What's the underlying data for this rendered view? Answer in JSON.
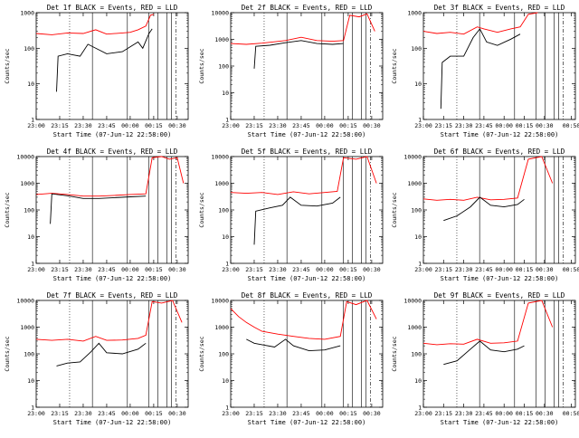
{
  "chart_data": [
    {
      "type": "line",
      "title": "Det 1f BLACK = Events, RED = LLD",
      "xlabel": "Start Time (07-Jun-12 22:58:00)",
      "ylabel": "Counts/sec",
      "yscale": "log",
      "ylim": [
        1,
        1000
      ],
      "xlim": [
        "23:00",
        "00:37"
      ],
      "xticks": [
        "23:00",
        "23:15",
        "23:30",
        "23:45",
        "00:00",
        "00:15",
        "00:30"
      ],
      "yticks": [
        "1",
        "10",
        "100",
        "1000"
      ],
      "red": [
        [
          "23:00",
          260
        ],
        [
          "23:10",
          240
        ],
        [
          "23:20",
          270
        ],
        [
          "23:30",
          260
        ],
        [
          "23:38",
          330
        ],
        [
          "23:45",
          250
        ],
        [
          "23:55",
          270
        ],
        [
          "00:00",
          280
        ],
        [
          "00:05",
          330
        ],
        [
          "00:10",
          420
        ],
        [
          "00:13",
          850
        ],
        [
          "00:15",
          900
        ]
      ],
      "black": [
        [
          "23:13",
          6
        ],
        [
          "23:14",
          60
        ],
        [
          "23:20",
          70
        ],
        [
          "23:28",
          60
        ],
        [
          "23:33",
          130
        ],
        [
          "23:45",
          70
        ],
        [
          "23:55",
          80
        ],
        [
          "00:00",
          110
        ],
        [
          "00:05",
          150
        ],
        [
          "00:08",
          100
        ],
        [
          "00:12",
          260
        ],
        [
          "00:14",
          350
        ]
      ]
    },
    {
      "type": "line",
      "title": "Det 2f BLACK = Events, RED = LLD",
      "xlabel": "Start Time (07-Jun-12 22:58:00)",
      "ylabel": "Counts/sec",
      "yscale": "log",
      "ylim": [
        1,
        10000
      ],
      "xlim": [
        "23:00",
        "00:37"
      ],
      "xticks": [
        "23:00",
        "23:15",
        "23:30",
        "23:45",
        "00:00",
        "00:15",
        "00:30"
      ],
      "yticks": [
        "1",
        "10",
        "100",
        "1000",
        "10000"
      ],
      "red": [
        [
          "23:00",
          700
        ],
        [
          "23:10",
          650
        ],
        [
          "23:20",
          720
        ],
        [
          "23:35",
          900
        ],
        [
          "23:45",
          1200
        ],
        [
          "23:55",
          900
        ],
        [
          "00:05",
          850
        ],
        [
          "00:12",
          900
        ],
        [
          "00:16",
          8000
        ],
        [
          "00:22",
          7000
        ],
        [
          "00:27",
          9000
        ],
        [
          "00:32",
          2000
        ]
      ],
      "black": [
        [
          "23:15",
          80
        ],
        [
          "23:16",
          550
        ],
        [
          "23:25",
          600
        ],
        [
          "23:35",
          750
        ],
        [
          "23:45",
          900
        ],
        [
          "23:55",
          700
        ],
        [
          "00:05",
          650
        ],
        [
          "00:12",
          700
        ]
      ]
    },
    {
      "type": "line",
      "title": "Det 3f BLACK = Events, RED = LLD",
      "xlabel": "Start Time (07-Jun-12 22:58:00)",
      "ylabel": "Counts/sec",
      "yscale": "log",
      "ylim": [
        1,
        1000
      ],
      "xlim": [
        "23:00",
        "00:53"
      ],
      "xticks": [
        "23:00",
        "23:15",
        "23:30",
        "23:45",
        "00:00",
        "00:15",
        "00:30",
        "00:50"
      ],
      "yticks": [
        "1",
        "10",
        "100",
        "1000"
      ],
      "red": [
        [
          "23:00",
          300
        ],
        [
          "23:10",
          260
        ],
        [
          "23:20",
          280
        ],
        [
          "23:30",
          250
        ],
        [
          "23:40",
          400
        ],
        [
          "23:45",
          350
        ],
        [
          "23:55",
          280
        ],
        [
          "00:05",
          350
        ],
        [
          "00:12",
          400
        ],
        [
          "00:18",
          900
        ],
        [
          "00:25",
          1000
        ]
      ],
      "black": [
        [
          "23:13",
          2
        ],
        [
          "23:14",
          40
        ],
        [
          "23:20",
          60
        ],
        [
          "23:30",
          60
        ],
        [
          "23:37",
          200
        ],
        [
          "23:42",
          350
        ],
        [
          "23:47",
          150
        ],
        [
          "23:55",
          120
        ],
        [
          "00:05",
          180
        ],
        [
          "00:12",
          250
        ]
      ]
    },
    {
      "type": "line",
      "title": "Det 4f BLACK = Events, RED = LLD",
      "xlabel": "Start Time (07-Jun-12 22:58:00)",
      "ylabel": "Counts/sec",
      "yscale": "log",
      "ylim": [
        1,
        10000
      ],
      "xlim": [
        "23:00",
        "00:37"
      ],
      "xticks": [
        "23:00",
        "23:15",
        "23:30",
        "23:45",
        "00:00",
        "00:15",
        "00:30"
      ],
      "yticks": [
        "1",
        "10",
        "100",
        "1000",
        "10000"
      ],
      "red": [
        [
          "23:00",
          380
        ],
        [
          "23:10",
          420
        ],
        [
          "23:20",
          380
        ],
        [
          "23:30",
          330
        ],
        [
          "23:40",
          330
        ],
        [
          "23:50",
          350
        ],
        [
          "00:00",
          380
        ],
        [
          "00:10",
          400
        ],
        [
          "00:14",
          9000
        ],
        [
          "00:20",
          10000
        ],
        [
          "00:25",
          8000
        ],
        [
          "00:30",
          9000
        ],
        [
          "00:34",
          1000
        ]
      ],
      "black": [
        [
          "23:09",
          30
        ],
        [
          "23:10",
          400
        ],
        [
          "23:20",
          340
        ],
        [
          "23:30",
          270
        ],
        [
          "23:40",
          270
        ],
        [
          "23:50",
          290
        ],
        [
          "00:00",
          310
        ],
        [
          "00:10",
          330
        ]
      ]
    },
    {
      "type": "line",
      "title": "Det 5f BLACK = Events, RED = LLD",
      "xlabel": "Start Time (07-Jun-12 22:58:00)",
      "ylabel": "Counts/sec",
      "yscale": "log",
      "ylim": [
        1,
        10000
      ],
      "xlim": [
        "23:00",
        "00:37"
      ],
      "xticks": [
        "23:00",
        "23:15",
        "23:30",
        "23:45",
        "00:00",
        "00:15",
        "00:30"
      ],
      "yticks": [
        "1",
        "10",
        "100",
        "1000",
        "10000"
      ],
      "red": [
        [
          "23:00",
          450
        ],
        [
          "23:10",
          420
        ],
        [
          "23:20",
          450
        ],
        [
          "23:30",
          380
        ],
        [
          "23:40",
          480
        ],
        [
          "23:50",
          400
        ],
        [
          "00:00",
          450
        ],
        [
          "00:08",
          500
        ],
        [
          "00:12",
          9000
        ],
        [
          "00:20",
          8000
        ],
        [
          "00:27",
          10000
        ],
        [
          "00:33",
          1000
        ]
      ],
      "black": [
        [
          "23:15",
          5
        ],
        [
          "23:16",
          90
        ],
        [
          "23:25",
          120
        ],
        [
          "23:33",
          150
        ],
        [
          "23:38",
          300
        ],
        [
          "23:45",
          150
        ],
        [
          "23:55",
          140
        ],
        [
          "00:05",
          180
        ],
        [
          "00:10",
          300
        ]
      ]
    },
    {
      "type": "line",
      "title": "Det 6f BLACK = Events, RED = LLD",
      "xlabel": "Start Time (07-Jun-12 22:58:00)",
      "ylabel": "Counts/sec",
      "yscale": "log",
      "ylim": [
        1,
        10000
      ],
      "xlim": [
        "23:00",
        "00:53"
      ],
      "xticks": [
        "23:00",
        "23:15",
        "23:30",
        "23:45",
        "00:00",
        "00:15",
        "00:30",
        "00:50"
      ],
      "yticks": [
        "1",
        "10",
        "100",
        "1000",
        "10000"
      ],
      "red": [
        [
          "23:00",
          260
        ],
        [
          "23:10",
          230
        ],
        [
          "23:20",
          250
        ],
        [
          "23:30",
          230
        ],
        [
          "23:40",
          300
        ],
        [
          "23:50",
          240
        ],
        [
          "00:00",
          250
        ],
        [
          "00:10",
          280
        ],
        [
          "00:18",
          8000
        ],
        [
          "00:28",
          10000
        ],
        [
          "00:36",
          1000
        ]
      ],
      "black": [
        [
          "23:15",
          40
        ],
        [
          "23:25",
          60
        ],
        [
          "23:35",
          130
        ],
        [
          "23:42",
          300
        ],
        [
          "23:50",
          150
        ],
        [
          "00:00",
          130
        ],
        [
          "00:10",
          160
        ],
        [
          "00:15",
          250
        ]
      ]
    },
    {
      "type": "line",
      "title": "Det 7f BLACK = Events, RED = LLD",
      "xlabel": "Start Time (07-Jun-12 22:58:00)",
      "ylabel": "Counts/sec",
      "yscale": "log",
      "ylim": [
        1,
        10000
      ],
      "xlim": [
        "23:00",
        "00:37"
      ],
      "xticks": [
        "23:00",
        "23:15",
        "23:30",
        "23:45",
        "00:00",
        "00:15",
        "00:30"
      ],
      "yticks": [
        "1",
        "10",
        "100",
        "1000",
        "10000"
      ],
      "red": [
        [
          "23:00",
          350
        ],
        [
          "23:10",
          320
        ],
        [
          "23:20",
          350
        ],
        [
          "23:30",
          300
        ],
        [
          "23:38",
          450
        ],
        [
          "23:45",
          320
        ],
        [
          "23:55",
          330
        ],
        [
          "00:05",
          380
        ],
        [
          "00:10",
          500
        ],
        [
          "00:14",
          9000
        ],
        [
          "00:20",
          8000
        ],
        [
          "00:27",
          10000
        ],
        [
          "00:33",
          1500
        ]
      ],
      "black": [
        [
          "23:13",
          35
        ],
        [
          "23:20",
          45
        ],
        [
          "23:28",
          50
        ],
        [
          "23:35",
          120
        ],
        [
          "23:40",
          250
        ],
        [
          "23:45",
          110
        ],
        [
          "23:55",
          100
        ],
        [
          "00:05",
          150
        ],
        [
          "00:10",
          250
        ]
      ]
    },
    {
      "type": "line",
      "title": "Det 8f BLACK = Events, RED = LLD",
      "xlabel": "Start Time (07-Jun-12 22:58:00)",
      "ylabel": "Counts/sec",
      "yscale": "log",
      "ylim": [
        1,
        10000
      ],
      "xlim": [
        "23:00",
        "00:37"
      ],
      "xticks": [
        "23:00",
        "23:15",
        "23:30",
        "23:45",
        "00:00",
        "00:15",
        "00:30"
      ],
      "yticks": [
        "1",
        "10",
        "100",
        "1000",
        "10000"
      ],
      "red": [
        [
          "23:00",
          5000
        ],
        [
          "23:05",
          2500
        ],
        [
          "23:10",
          1500
        ],
        [
          "23:15",
          1000
        ],
        [
          "23:20",
          700
        ],
        [
          "23:30",
          550
        ],
        [
          "23:40",
          450
        ],
        [
          "23:50",
          380
        ],
        [
          "00:00",
          350
        ],
        [
          "00:10",
          450
        ],
        [
          "00:14",
          9000
        ],
        [
          "00:20",
          7000
        ],
        [
          "00:27",
          10000
        ],
        [
          "00:33",
          2000
        ]
      ],
      "black": [
        [
          "23:10",
          350
        ],
        [
          "23:15",
          250
        ],
        [
          "23:20",
          220
        ],
        [
          "23:28",
          180
        ],
        [
          "23:35",
          350
        ],
        [
          "23:40",
          200
        ],
        [
          "23:50",
          130
        ],
        [
          "00:00",
          140
        ],
        [
          "00:10",
          200
        ]
      ]
    },
    {
      "type": "line",
      "title": "Det 9f BLACK = Events, RED = LLD",
      "xlabel": "Start Time (07-Jun-12 22:58:00)",
      "ylabel": "Counts/sec",
      "yscale": "log",
      "ylim": [
        1,
        10000
      ],
      "xlim": [
        "23:00",
        "00:53"
      ],
      "xticks": [
        "23:00",
        "23:15",
        "23:30",
        "23:45",
        "00:00",
        "00:15",
        "00:30",
        "00:50"
      ],
      "yticks": [
        "1",
        "10",
        "100",
        "1000",
        "10000"
      ],
      "red": [
        [
          "23:00",
          250
        ],
        [
          "23:10",
          220
        ],
        [
          "23:20",
          240
        ],
        [
          "23:30",
          230
        ],
        [
          "23:40",
          350
        ],
        [
          "23:50",
          250
        ],
        [
          "00:00",
          260
        ],
        [
          "00:10",
          300
        ],
        [
          "00:18",
          8000
        ],
        [
          "00:28",
          10000
        ],
        [
          "00:36",
          1000
        ]
      ],
      "black": [
        [
          "23:15",
          40
        ],
        [
          "23:25",
          55
        ],
        [
          "23:35",
          150
        ],
        [
          "23:42",
          300
        ],
        [
          "23:50",
          140
        ],
        [
          "00:00",
          120
        ],
        [
          "00:10",
          150
        ],
        [
          "00:15",
          200
        ]
      ]
    }
  ],
  "colors": {
    "lld": "#ff0000",
    "events": "#000000"
  }
}
